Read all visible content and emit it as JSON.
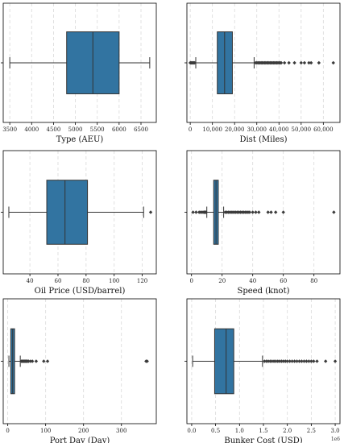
{
  "colors": {
    "box": "#3274a1",
    "outline": "#333333",
    "grid": "#d9d9d9"
  },
  "chart_data": [
    {
      "type": "box",
      "xlabel": "Type (AEU)",
      "xlim": [
        3350,
        6850
      ],
      "ticks": [
        3500,
        4000,
        4500,
        5000,
        5500,
        6000,
        6500
      ],
      "tick_labels": [
        "3500",
        "4000",
        "4500",
        "5000",
        "5500",
        "6000",
        "6500"
      ],
      "whisker_low": 3500,
      "q1": 4800,
      "median": 5400,
      "q3": 6000,
      "whisker_high": 6700,
      "outliers": []
    },
    {
      "type": "box",
      "xlabel": "Dist (Miles)",
      "xlim": [
        -1500,
        67500
      ],
      "ticks": [
        0,
        10000,
        20000,
        30000,
        40000,
        50000,
        60000
      ],
      "tick_labels": [
        "0",
        "10,000",
        "20,000",
        "30,000",
        "40,000",
        "50,000",
        "60,000"
      ],
      "whisker_low": 2500,
      "q1": 12200,
      "median": 15500,
      "q3": 19000,
      "whisker_high": 28800,
      "outliers": [
        0,
        200,
        500,
        800,
        1200,
        1600,
        2000,
        29500,
        30000,
        30500,
        31000,
        31500,
        32000,
        32500,
        33000,
        33500,
        34000,
        34500,
        35000,
        35500,
        36000,
        36500,
        37000,
        37500,
        38000,
        38500,
        39000,
        39500,
        40000,
        40500,
        41000,
        42500,
        44500,
        47000,
        50000,
        51500,
        53500,
        54500,
        58000,
        64500
      ]
    },
    {
      "type": "box",
      "xlabel": "Oil Price (USD/barrel)",
      "xlim": [
        21,
        130
      ],
      "ticks": [
        40,
        60,
        80,
        100,
        120
      ],
      "tick_labels": [
        "40",
        "60",
        "80",
        "100",
        "120"
      ],
      "whisker_low": 25,
      "q1": 52,
      "median": 65,
      "q3": 81,
      "whisker_high": 121,
      "outliers": [
        126
      ]
    },
    {
      "type": "box",
      "xlabel": "Speed (knot)",
      "xlim": [
        -3,
        97
      ],
      "ticks": [
        0,
        20,
        40,
        60,
        80
      ],
      "tick_labels": [
        "0",
        "20",
        "40",
        "60",
        "80"
      ],
      "whisker_low": 10,
      "q1": 14.5,
      "median": 16,
      "q3": 17.5,
      "whisker_high": 21,
      "outliers": [
        1,
        3,
        5,
        6,
        7,
        8,
        8.5,
        9,
        9.5,
        22,
        23,
        24,
        25,
        26,
        27,
        28,
        29,
        30,
        31,
        32,
        33,
        34,
        35,
        36,
        37,
        38,
        40,
        42,
        44,
        50,
        52,
        55,
        60,
        93
      ]
    },
    {
      "type": "box",
      "xlabel": "Port Day (Day)",
      "xlim": [
        -12,
        392
      ],
      "ticks": [
        0,
        100,
        200,
        300
      ],
      "tick_labels": [
        "0",
        "100",
        "200",
        "300"
      ],
      "whisker_low": 3,
      "q1": 8,
      "median": 13,
      "q3": 18,
      "whisker_high": 33,
      "outliers": [
        36,
        38,
        40,
        42,
        44,
        46,
        48,
        50,
        52,
        55,
        60,
        65,
        75,
        95,
        105,
        365,
        368
      ]
    },
    {
      "type": "box",
      "xlabel": "Bunker Cost (USD)",
      "offset_text": "1e6",
      "xlim": [
        -0.1,
        3.1
      ],
      "ticks": [
        0.0,
        0.5,
        1.0,
        1.5,
        2.0,
        2.5,
        3.0
      ],
      "tick_labels": [
        "0.0",
        "0.5",
        "1.0",
        "1.5",
        "2.0",
        "2.5",
        "3.0"
      ],
      "whisker_low": 0.02,
      "q1": 0.48,
      "median": 0.72,
      "q3": 0.88,
      "whisker_high": 1.48,
      "outliers": [
        1.52,
        1.56,
        1.6,
        1.64,
        1.68,
        1.72,
        1.76,
        1.8,
        1.84,
        1.88,
        1.92,
        1.96,
        2.0,
        2.05,
        2.1,
        2.15,
        2.2,
        2.25,
        2.3,
        2.35,
        2.4,
        2.45,
        2.5,
        2.55,
        2.62,
        2.8,
        3.0
      ]
    }
  ]
}
